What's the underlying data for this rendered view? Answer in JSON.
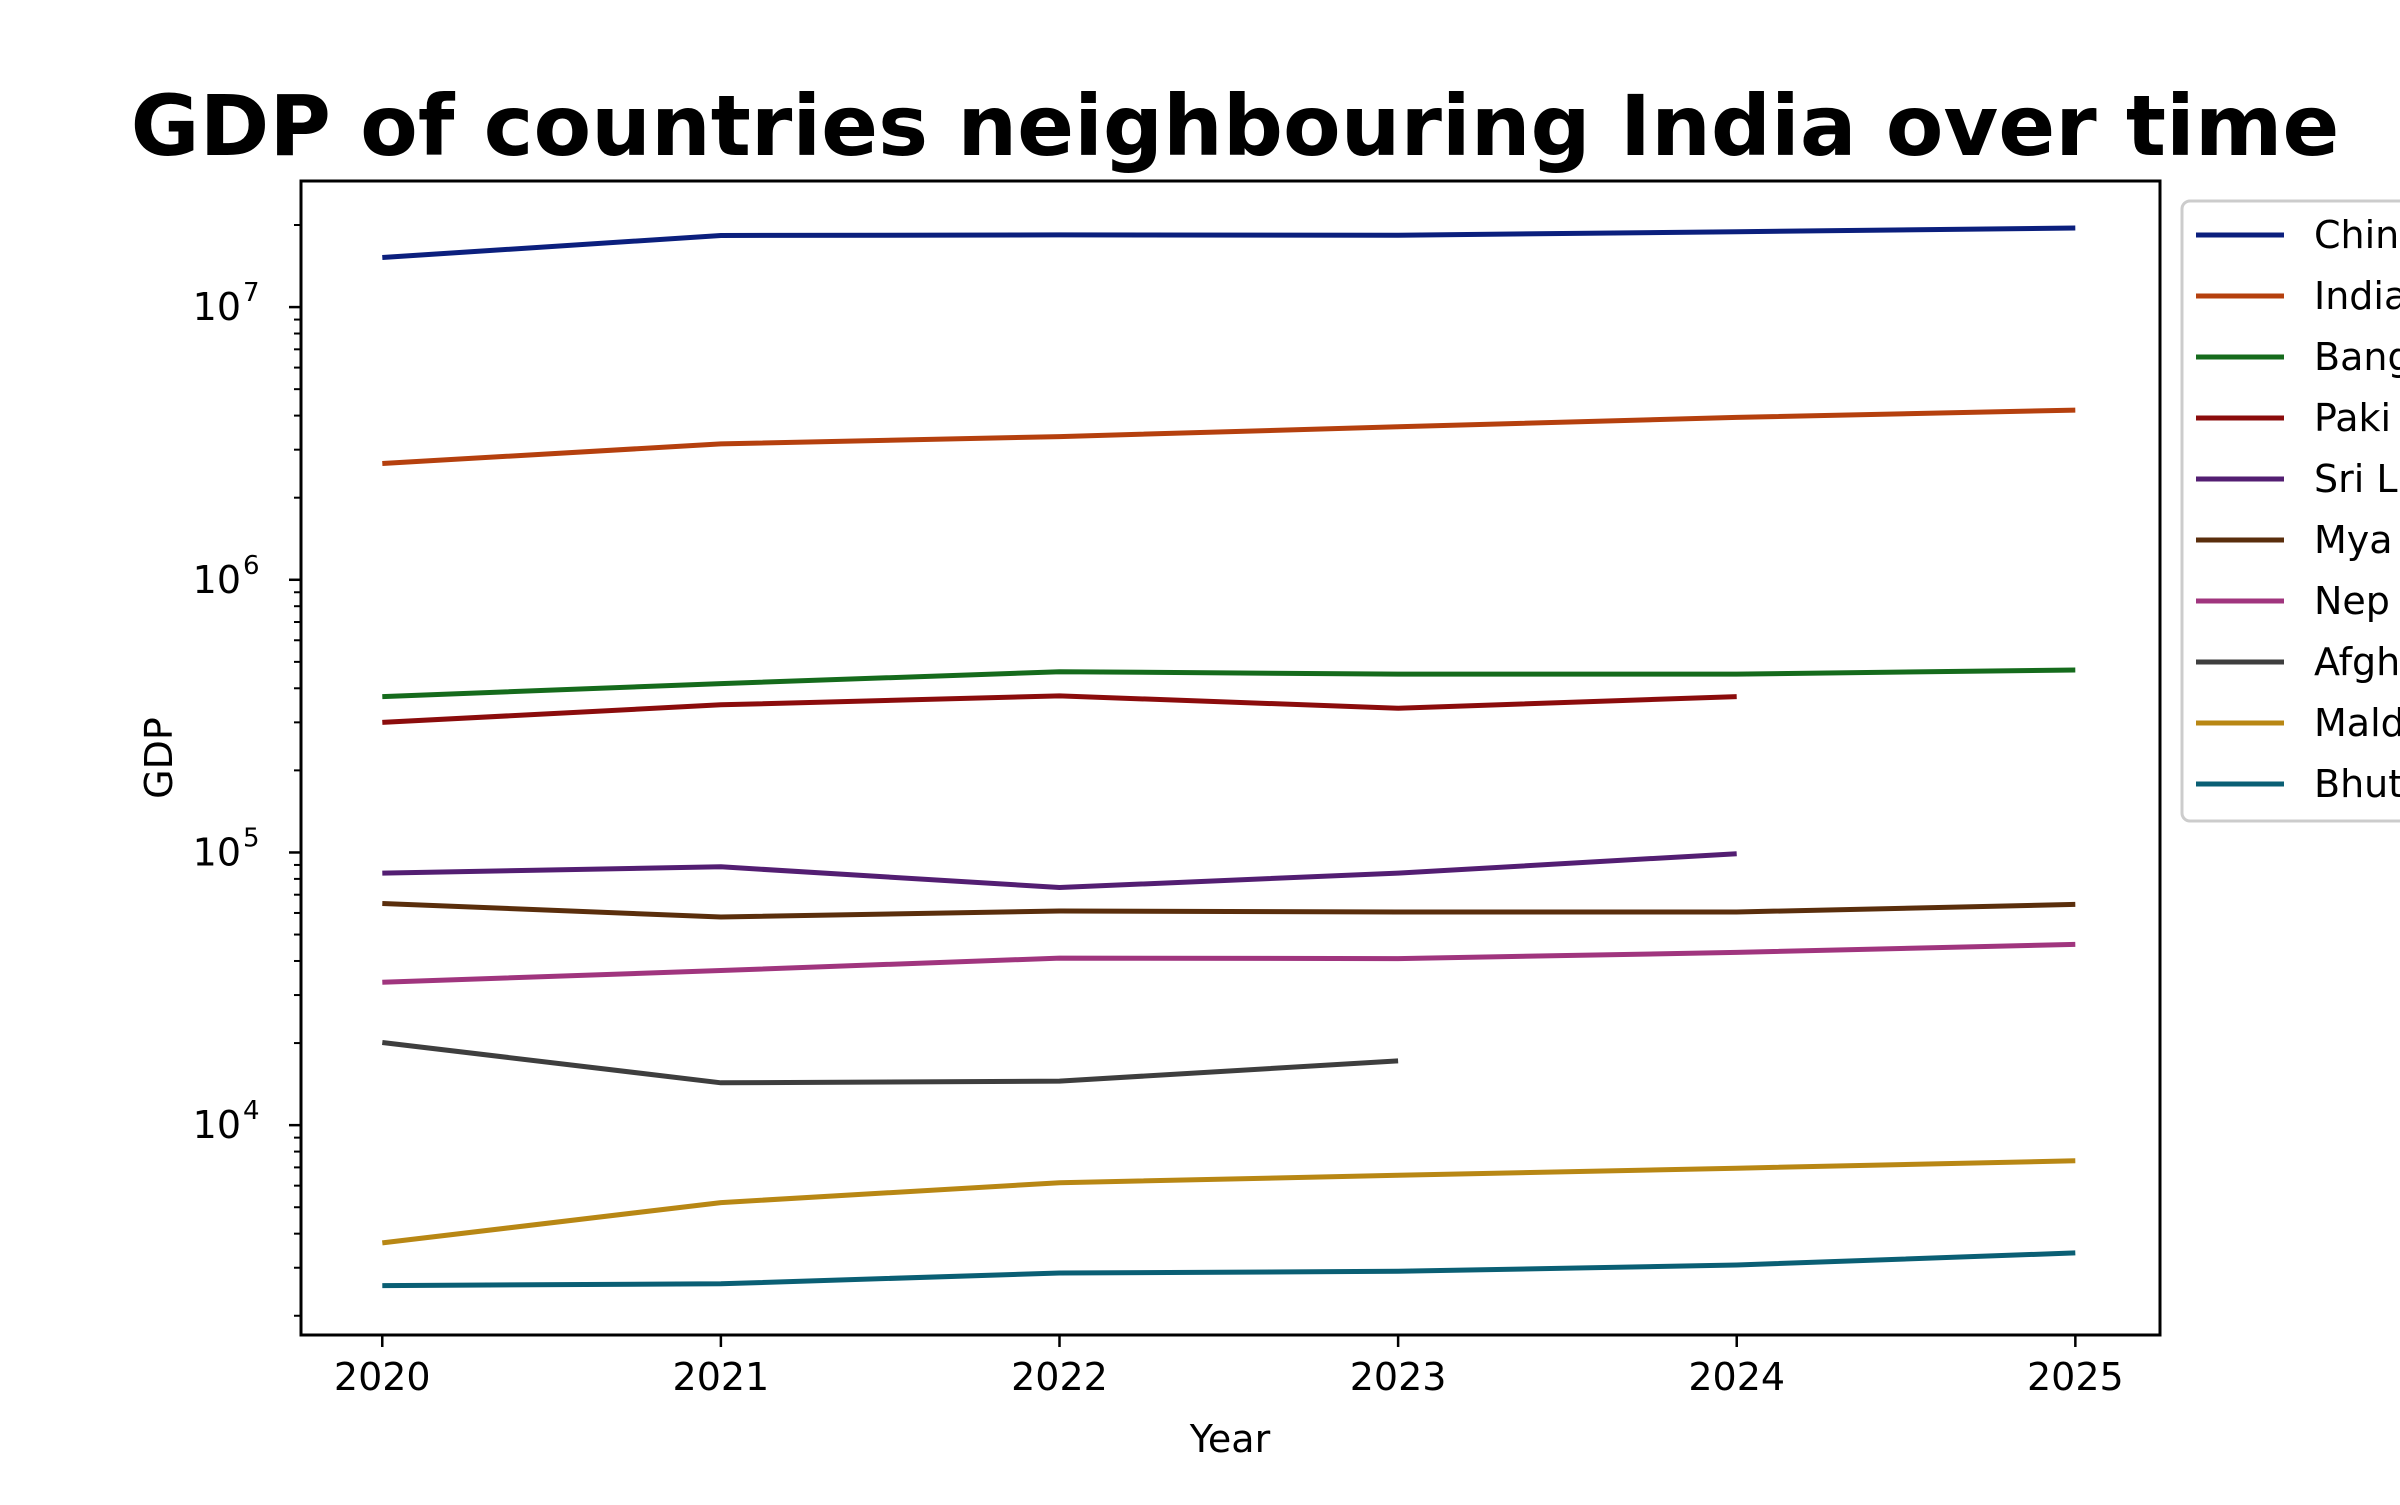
{
  "chart_data": {
    "type": "line",
    "title": "GDP of countries neighbouring India over time",
    "xlabel": "Year",
    "ylabel": "GDP",
    "yscale": "log",
    "x": [
      2020,
      2021,
      2022,
      2023,
      2024,
      2025
    ],
    "xlim": [
      2019.76,
      2025.25
    ],
    "ylim": [
      1700,
      29000000
    ],
    "y_ticks": [
      {
        "value": 10000,
        "base": "10",
        "exp": "4"
      },
      {
        "value": 100000,
        "base": "10",
        "exp": "5"
      },
      {
        "value": 1000000,
        "base": "10",
        "exp": "6"
      },
      {
        "value": 10000000,
        "base": "10",
        "exp": "7"
      }
    ],
    "grid": false,
    "legend_position": "outside-right-top",
    "series": [
      {
        "name": "China",
        "legend_visible": "Chin",
        "color": "#0b1f7d",
        "values": [
          15200000,
          18300000,
          18400000,
          18350000,
          18900000,
          19500000
        ]
      },
      {
        "name": "India",
        "legend_visible": "India",
        "color": "#b5400e",
        "values": [
          2670000,
          3150000,
          3350000,
          3640000,
          3940000,
          4190000
        ]
      },
      {
        "name": "Bangladesh",
        "legend_visible": "Bang",
        "color": "#156b1c",
        "values": [
          373000,
          416000,
          460000,
          451000,
          451000,
          467000
        ]
      },
      {
        "name": "Pakistan",
        "legend_visible": "Paki",
        "color": "#8b0c0c",
        "values": [
          300000,
          348000,
          375000,
          338000,
          373000,
          null
        ]
      },
      {
        "name": "Sri Lanka",
        "legend_visible": "Sri L",
        "color": "#531e72",
        "values": [
          84000,
          88600,
          74400,
          84000,
          99000,
          null
        ]
      },
      {
        "name": "Myanmar",
        "legend_visible": "Mya",
        "color": "#5a2e0c",
        "values": [
          65000,
          58000,
          61000,
          60500,
          60500,
          64500
        ]
      },
      {
        "name": "Nepal",
        "legend_visible": "Nep",
        "color": "#a0357e",
        "values": [
          33400,
          36900,
          41000,
          40800,
          43000,
          46000
        ]
      },
      {
        "name": "Afghanistan",
        "legend_visible": "Afgh",
        "color": "#3e3e3e",
        "values": [
          20100,
          14300,
          14500,
          17200,
          null,
          null
        ]
      },
      {
        "name": "Maldives",
        "legend_visible": "Mald",
        "color": "#b88714",
        "values": [
          3700,
          5200,
          6150,
          6550,
          6950,
          7400
        ]
      },
      {
        "name": "Bhutan",
        "legend_visible": "Bhut",
        "color": "#0a5f74",
        "values": [
          2580,
          2620,
          2870,
          2910,
          3070,
          3400
        ]
      }
    ]
  }
}
